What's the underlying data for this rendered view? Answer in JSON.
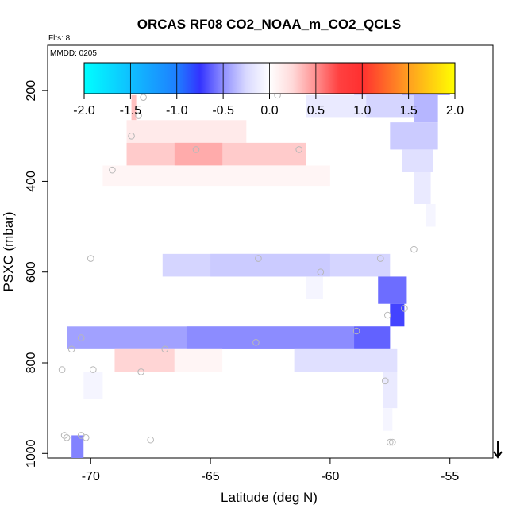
{
  "chart_data": {
    "type": "heatmap",
    "title": "ORCAS RF08 CO2_NOAA_m_CO2_QCLS",
    "flights_label": "Flts: 8",
    "date_label": "MMDD: 0205",
    "xlabel": "Latitude (deg N)",
    "ylabel": "PSXC (mbar)",
    "xlim": [
      -71.8,
      -53.2
    ],
    "ylim": [
      1010,
      100
    ],
    "y_reversed": true,
    "x_ticks": [
      -70,
      -65,
      -60,
      -55
    ],
    "y_ticks": [
      200,
      400,
      600,
      800,
      1000
    ],
    "colorbar": {
      "range": [
        -2.0,
        2.0
      ],
      "ticks": [
        "-2.0",
        "-1.5",
        "-1.0",
        "-0.5",
        "0.0",
        "0.5",
        "1.0",
        "1.5",
        "2.0"
      ],
      "tick_values": [
        -2.0,
        -1.5,
        -1.0,
        -0.5,
        0.0,
        0.5,
        1.0,
        1.5,
        2.0
      ]
    },
    "cells": [
      {
        "x0": -57.0,
        "x1": -55.0,
        "y0": 160,
        "y1": 210,
        "value": -0.5
      },
      {
        "x0": -59.0,
        "x1": -57.0,
        "y0": 160,
        "y1": 210,
        "value": -0.25
      },
      {
        "x0": -60.0,
        "x1": -59.0,
        "y0": 160,
        "y1": 210,
        "value": -0.05
      },
      {
        "x0": -56.5,
        "x1": -55.5,
        "y0": 210,
        "y1": 270,
        "value": -0.35
      },
      {
        "x0": -58.5,
        "x1": -56.5,
        "y0": 210,
        "y1": 260,
        "value": -0.2
      },
      {
        "x0": -61.0,
        "x1": -58.5,
        "y0": 210,
        "y1": 260,
        "value": -0.1
      },
      {
        "x0": -57.5,
        "x1": -55.5,
        "y0": 270,
        "y1": 330,
        "value": -0.25
      },
      {
        "x0": -57.0,
        "x1": -55.7,
        "y0": 330,
        "y1": 380,
        "value": -0.15
      },
      {
        "x0": -56.5,
        "x1": -55.8,
        "y0": 380,
        "y1": 450,
        "value": -0.1
      },
      {
        "x0": -56.0,
        "x1": -55.6,
        "y0": 450,
        "y1": 500,
        "value": -0.05
      },
      {
        "x0": -68.3,
        "x1": -68.1,
        "y0": 210,
        "y1": 265,
        "value": 0.3
      },
      {
        "x0": -68.5,
        "x1": -63.5,
        "y0": 265,
        "y1": 315,
        "value": 0.1
      },
      {
        "x0": -68.5,
        "x1": -61.0,
        "y0": 315,
        "y1": 365,
        "value": 0.25
      },
      {
        "x0": -66.5,
        "x1": -64.5,
        "y0": 315,
        "y1": 365,
        "value": 0.4
      },
      {
        "x0": -69.5,
        "x1": -60.0,
        "y0": 365,
        "y1": 410,
        "value": 0.05
      },
      {
        "x0": -67.0,
        "x1": -57.5,
        "y0": 560,
        "y1": 610,
        "value": -0.2
      },
      {
        "x0": -65.0,
        "x1": -60.0,
        "y0": 560,
        "y1": 610,
        "value": -0.25
      },
      {
        "x0": -58.0,
        "x1": -56.8,
        "y0": 610,
        "y1": 670,
        "value": -0.7
      },
      {
        "x0": -57.5,
        "x1": -56.9,
        "y0": 670,
        "y1": 720,
        "value": -0.9
      },
      {
        "x0": -61.0,
        "x1": -60.3,
        "y0": 610,
        "y1": 660,
        "value": -0.05
      },
      {
        "x0": -71.0,
        "x1": -57.5,
        "y0": 720,
        "y1": 770,
        "value": -0.45
      },
      {
        "x0": -66.0,
        "x1": -59.0,
        "y0": 720,
        "y1": 770,
        "value": -0.55
      },
      {
        "x0": -59.0,
        "x1": -57.5,
        "y0": 720,
        "y1": 770,
        "value": -0.75
      },
      {
        "x0": -69.0,
        "x1": -66.5,
        "y0": 770,
        "y1": 820,
        "value": 0.2
      },
      {
        "x0": -66.5,
        "x1": -64.5,
        "y0": 770,
        "y1": 820,
        "value": 0.05
      },
      {
        "x0": -61.5,
        "x1": -57.2,
        "y0": 770,
        "y1": 820,
        "value": -0.15
      },
      {
        "x0": -70.3,
        "x1": -69.5,
        "y0": 820,
        "y1": 880,
        "value": -0.05
      },
      {
        "x0": -57.8,
        "x1": -57.2,
        "y0": 820,
        "y1": 900,
        "value": -0.1
      },
      {
        "x0": -57.8,
        "x1": -57.4,
        "y0": 900,
        "y1": 950,
        "value": -0.05
      },
      {
        "x0": -70.8,
        "x1": -70.3,
        "y0": 960,
        "y1": 1010,
        "value": -0.6
      }
    ],
    "points": [
      [
        -67.8,
        215
      ],
      [
        -68.0,
        255
      ],
      [
        -68.3,
        300
      ],
      [
        -65.6,
        330
      ],
      [
        -62.2,
        210
      ],
      [
        -61.3,
        330
      ],
      [
        -69.1,
        375
      ],
      [
        -58.0,
        185
      ],
      [
        -57.9,
        570
      ],
      [
        -63.0,
        570
      ],
      [
        -56.5,
        550
      ],
      [
        -60.4,
        600
      ],
      [
        -70.0,
        570
      ],
      [
        -56.9,
        680
      ],
      [
        -57.6,
        695
      ],
      [
        -58.9,
        730
      ],
      [
        -70.4,
        745
      ],
      [
        -70.8,
        770
      ],
      [
        -66.9,
        770
      ],
      [
        -63.1,
        755
      ],
      [
        -67.9,
        820
      ],
      [
        -71.2,
        815
      ],
      [
        -69.9,
        815
      ],
      [
        -57.7,
        840
      ],
      [
        -71.1,
        960
      ],
      [
        -71.0,
        965
      ],
      [
        -70.4,
        960
      ],
      [
        -70.2,
        965
      ],
      [
        -67.5,
        970
      ],
      [
        -57.4,
        975
      ],
      [
        -57.5,
        975
      ]
    ],
    "marker": {
      "x": -53.0,
      "symbol": "down-arrow"
    }
  }
}
